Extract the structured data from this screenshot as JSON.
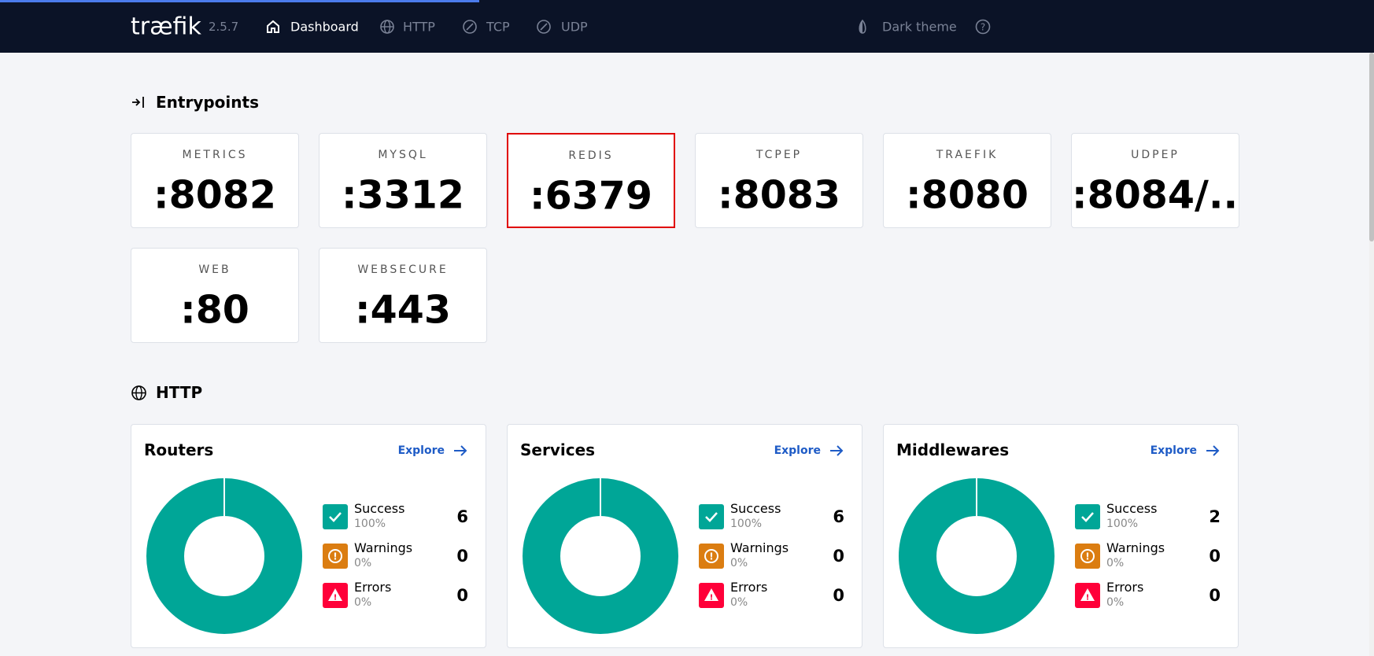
{
  "nav": {
    "logo": "træfik",
    "version": "2.5.7",
    "items": [
      "Dashboard",
      "HTTP",
      "TCP",
      "UDP"
    ],
    "theme": "Dark theme"
  },
  "entrypoints": {
    "title": "Entrypoints",
    "items": [
      {
        "name": "METRICS",
        "address": ":8082"
      },
      {
        "name": "MYSQL",
        "address": ":3312"
      },
      {
        "name": "REDIS",
        "address": ":6379",
        "highlight": true
      },
      {
        "name": "TCPEP",
        "address": ":8083"
      },
      {
        "name": "TRAEFIK",
        "address": ":8080"
      },
      {
        "name": "UDPEP",
        "address": ":8084/..."
      },
      {
        "name": "WEB",
        "address": ":80"
      },
      {
        "name": "WEBSECURE",
        "address": ":443"
      }
    ]
  },
  "http": {
    "title": "HTTP",
    "panels": [
      {
        "title": "Routers",
        "explore": "Explore",
        "stats": [
          {
            "label": "Success",
            "percent": "100%",
            "count": 6,
            "color": "#00a697"
          },
          {
            "label": "Warnings",
            "percent": "0%",
            "count": 0,
            "color": "#db7d11"
          },
          {
            "label": "Errors",
            "percent": "0%",
            "count": 0,
            "color": "#ff0039"
          }
        ]
      },
      {
        "title": "Services",
        "explore": "Explore",
        "stats": [
          {
            "label": "Success",
            "percent": "100%",
            "count": 6,
            "color": "#00a697"
          },
          {
            "label": "Warnings",
            "percent": "0%",
            "count": 0,
            "color": "#db7d11"
          },
          {
            "label": "Errors",
            "percent": "0%",
            "count": 0,
            "color": "#ff0039"
          }
        ]
      },
      {
        "title": "Middlewares",
        "explore": "Explore",
        "stats": [
          {
            "label": "Success",
            "percent": "100%",
            "count": 2,
            "color": "#00a697"
          },
          {
            "label": "Warnings",
            "percent": "0%",
            "count": 0,
            "color": "#db7d11"
          },
          {
            "label": "Errors",
            "percent": "0%",
            "count": 0,
            "color": "#ff0039"
          }
        ]
      }
    ]
  }
}
